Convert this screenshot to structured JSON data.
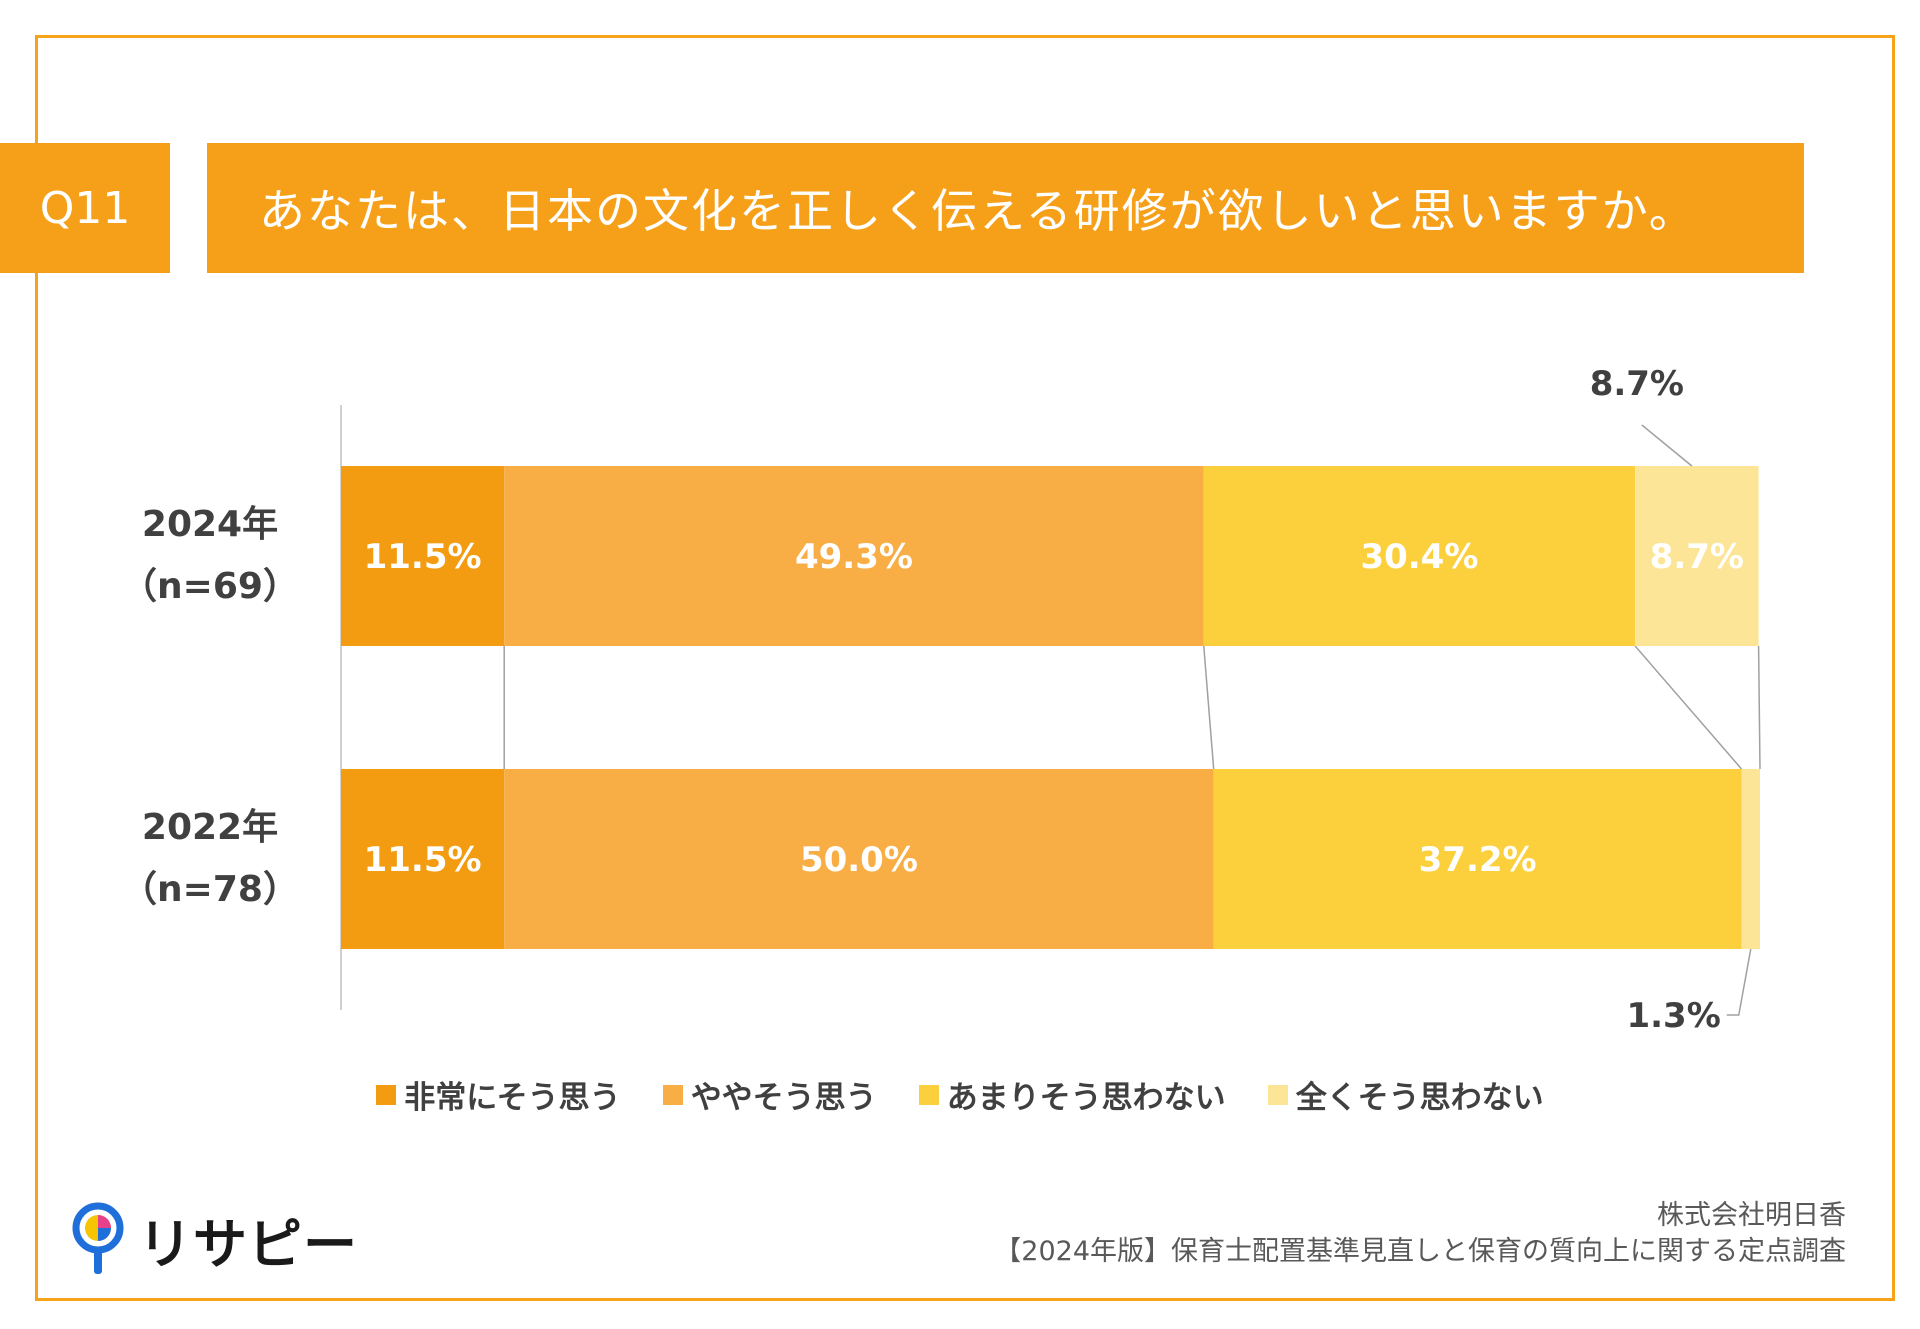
{
  "header": {
    "question_no": "Q11",
    "question": "あなたは、日本の文化を正しく伝える研修が欲しいと思いますか。"
  },
  "chart_data": {
    "type": "bar",
    "orientation": "horizontal",
    "stacked": true,
    "percent": true,
    "categories": [
      "2024年\n（n=69）",
      "2022年\n（n=78）"
    ],
    "category_lines": [
      [
        "2024年",
        "（n=69）"
      ],
      [
        "2022年",
        "（n=78）"
      ]
    ],
    "series": [
      {
        "name": "非常にそう思う",
        "values": [
          11.5,
          11.5
        ],
        "labels": [
          "11.5%",
          "11.5%"
        ],
        "color": "#f39c12"
      },
      {
        "name": "ややそう思う",
        "values": [
          49.3,
          50.0
        ],
        "labels": [
          "49.3%",
          "50.0%"
        ],
        "color": "#f8ae45"
      },
      {
        "name": "あまりそう思わない",
        "values": [
          30.4,
          37.2
        ],
        "labels": [
          "30.4%",
          "37.2%"
        ],
        "color": "#fcd03c"
      },
      {
        "name": "全くそう思わない",
        "values": [
          8.7,
          1.3
        ],
        "labels": [
          "8.7%",
          "1.3%"
        ],
        "color": "#fde597"
      }
    ],
    "xlim": [
      0,
      100
    ],
    "legend_position": "bottom",
    "series_lines": true
  },
  "footer": {
    "logo_text": "リサピー",
    "company": "株式会社明日香",
    "survey": "【2024年版】保育士配置基準見直しと保育の質向上に関する定点調査"
  }
}
